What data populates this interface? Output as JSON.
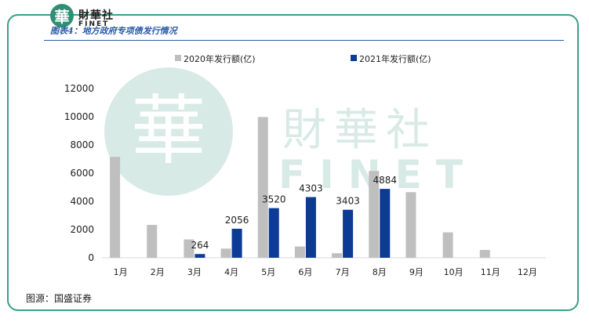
{
  "header": {
    "logo_glyph": "華",
    "brand_cn": "財華社",
    "brand_en": "FINET",
    "caption": "图表4：地方政府专项债发行情况"
  },
  "watermark": {
    "glyph": "華",
    "brand_cn": "財華社",
    "brand_en": "FINET"
  },
  "source": "图源：国盛证券",
  "colors": {
    "frame": "#3a9e8a",
    "series_2020": "#bfbfbf",
    "series_2021": "#0d3a94",
    "caption": "#2a5aa8"
  },
  "chart_data": {
    "type": "bar",
    "categories": [
      "1月",
      "2月",
      "3月",
      "4月",
      "5月",
      "6月",
      "7月",
      "8月",
      "9月",
      "10月",
      "11月",
      "12月"
    ],
    "series": [
      {
        "name": "2020年发行额(亿)",
        "values": [
          7150,
          2330,
          1300,
          650,
          9980,
          800,
          320,
          6150,
          4650,
          1800,
          550,
          0
        ]
      },
      {
        "name": "2021年发行额(亿)",
        "values": [
          0,
          0,
          264,
          2056,
          3520,
          4303,
          3403,
          4884,
          null,
          null,
          null,
          null
        ]
      }
    ],
    "data_labels": {
      "series": "2021年发行额(亿)",
      "values": [
        "264",
        "2056",
        "3520",
        "4303",
        "3403",
        "4884"
      ],
      "categories": [
        "3月",
        "4月",
        "5月",
        "6月",
        "7月",
        "8月"
      ]
    },
    "yticks": [
      "0",
      "2000",
      "4000",
      "6000",
      "8000",
      "10000",
      "12000"
    ],
    "ylim": [
      0,
      12000
    ],
    "legend": "top",
    "grid": false
  }
}
